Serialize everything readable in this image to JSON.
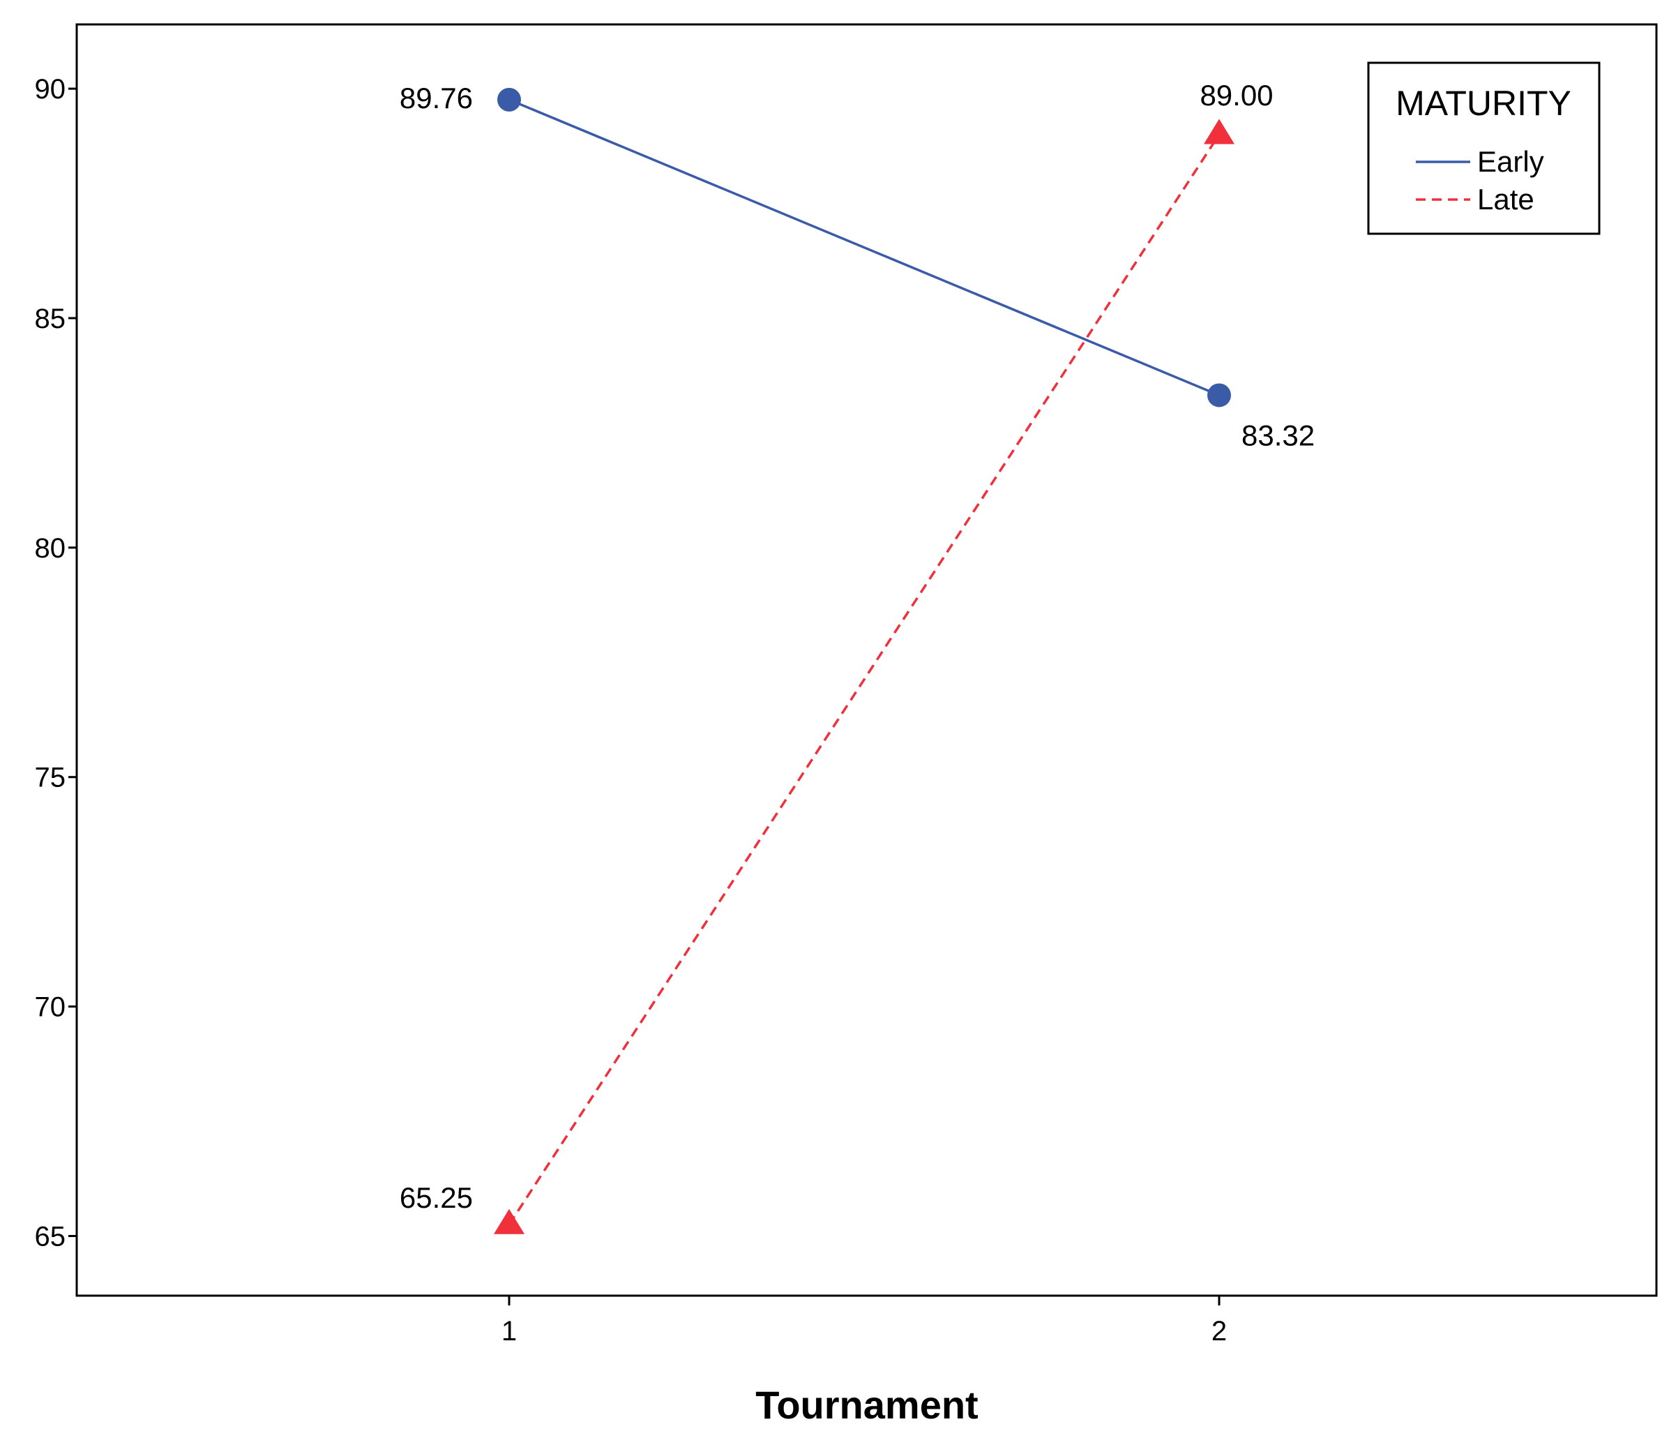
{
  "chart_data": {
    "type": "line",
    "title": "",
    "xlabel": "Tournament",
    "ylabel": "",
    "categories": [
      "1",
      "2"
    ],
    "y_ticks": [
      "65",
      "70",
      "75",
      "80",
      "85",
      "90"
    ],
    "ylim": [
      63.7,
      91.4
    ],
    "grid": false,
    "legend": {
      "title": "MATURITY",
      "placement": "top-right"
    },
    "series": [
      {
        "name": "Early",
        "values": [
          89.76,
          83.32
        ],
        "labels": [
          "89.76",
          "83.32"
        ],
        "color": "#3a5ba8",
        "line_style": "solid",
        "marker": "circle"
      },
      {
        "name": "Late",
        "values": [
          65.25,
          89.0
        ],
        "labels": [
          "65.25",
          "89.00"
        ],
        "color": "#f0303a",
        "line_style": "dashed",
        "marker": "triangle"
      }
    ]
  }
}
